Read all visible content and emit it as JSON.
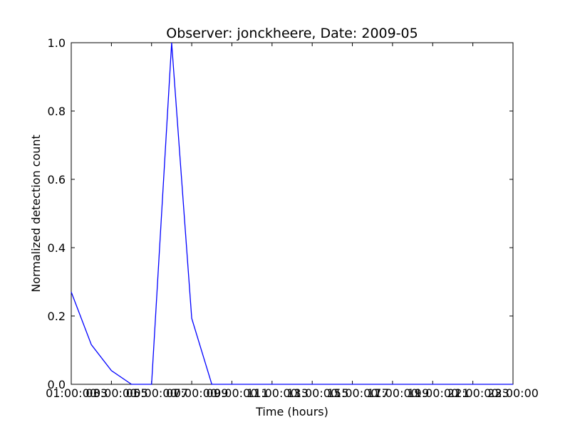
{
  "chart_data": {
    "type": "line",
    "title": "Observer: jonckheere, Date: 2009-05",
    "xlabel": "Time (hours)",
    "ylabel": "Normalized detection count",
    "ylim": [
      0,
      1
    ],
    "yticks": [
      "0.0",
      "0.2",
      "0.4",
      "0.6",
      "0.8",
      "1.0"
    ],
    "xticks": [
      "01:00:00",
      "03:00:00",
      "05:00:00",
      "07:00:00",
      "09:00:00",
      "11:00:00",
      "13:00:00",
      "15:00:00",
      "17:00:00",
      "19:00:00",
      "21:00:00",
      "23:00:00"
    ],
    "xtick_offsets": [
      "03",
      "05",
      "07",
      "09",
      "11",
      "13",
      "15",
      "17",
      "19",
      "21",
      "23"
    ],
    "grid": false,
    "series": [
      {
        "color": "#0000ff",
        "x": [
          "01:00:00",
          "02:00:00",
          "03:00:00",
          "04:00:00",
          "05:00:00",
          "06:00:00",
          "07:00:00",
          "08:00:00",
          "09:00:00",
          "10:00:00",
          "11:00:00",
          "12:00:00",
          "13:00:00",
          "14:00:00",
          "15:00:00",
          "16:00:00",
          "17:00:00",
          "18:00:00",
          "19:00:00",
          "20:00:00",
          "21:00:00",
          "22:00:00",
          "23:00:00"
        ],
        "values": [
          0.27,
          0.116,
          0.04,
          0.0,
          0.0,
          1.0,
          0.193,
          0.0,
          0.0,
          0.0,
          0.0,
          0.0,
          0.0,
          0.0,
          0.0,
          0.0,
          0.0,
          0.0,
          0.0,
          0.0,
          0.0,
          0.0,
          0.0
        ]
      }
    ]
  }
}
